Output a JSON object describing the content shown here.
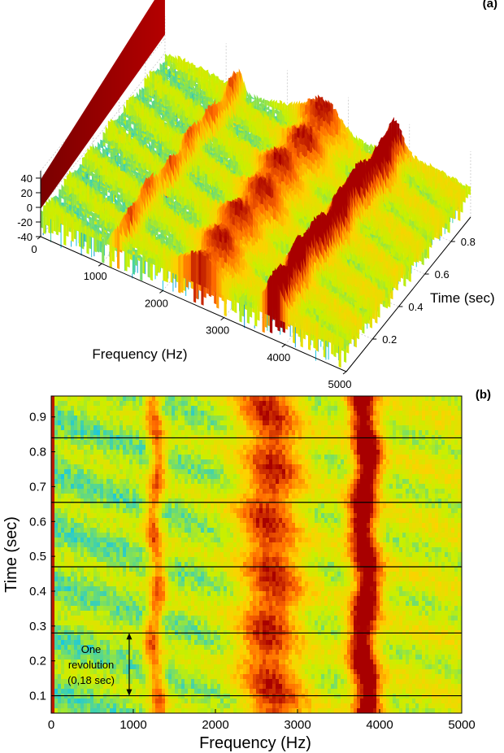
{
  "chart_data": [
    {
      "id": "a",
      "panel_label": "(a)",
      "type": "surface3d",
      "x_axis": {
        "label": "Frequency (Hz)",
        "range": [
          0,
          5000
        ],
        "ticks": [
          0,
          1000,
          2000,
          3000,
          4000,
          5000
        ]
      },
      "y_axis": {
        "label": "Time (sec)",
        "range": [
          0,
          0.95
        ],
        "ticks": [
          0.2,
          0.4,
          0.6,
          0.8
        ]
      },
      "z_axis": {
        "label": "",
        "range": [
          -40,
          50
        ],
        "ticks": [
          -40,
          -20,
          0,
          20,
          40
        ]
      },
      "bands_hz": [
        1250,
        2650,
        3800
      ],
      "colormap": [
        "#0050c8",
        "#18c8e0",
        "#c8f000",
        "#ffd000",
        "#ff6a00",
        "#a80000"
      ],
      "grid": true
    },
    {
      "id": "b",
      "panel_label": "(b)",
      "type": "heatmap",
      "x_axis": {
        "label": "Frequency (Hz)",
        "range": [
          0,
          5000
        ],
        "ticks": [
          0,
          1000,
          2000,
          3000,
          4000,
          5000
        ]
      },
      "y_axis": {
        "label": "Time (sec)",
        "range": [
          0.05,
          0.96
        ],
        "ticks": [
          0.1,
          0.2,
          0.3,
          0.4,
          0.5,
          0.6,
          0.7,
          0.8,
          0.9
        ]
      },
      "bands_hz": [
        1250,
        2650,
        3800
      ],
      "revolution_lines_sec": [
        0.1,
        0.28,
        0.47,
        0.655,
        0.84
      ],
      "annotation": {
        "lines": [
          "One",
          "revolution",
          "(0,18 sec)"
        ],
        "from_sec": 0.1,
        "to_sec": 0.28,
        "at_hz": 950
      }
    }
  ]
}
